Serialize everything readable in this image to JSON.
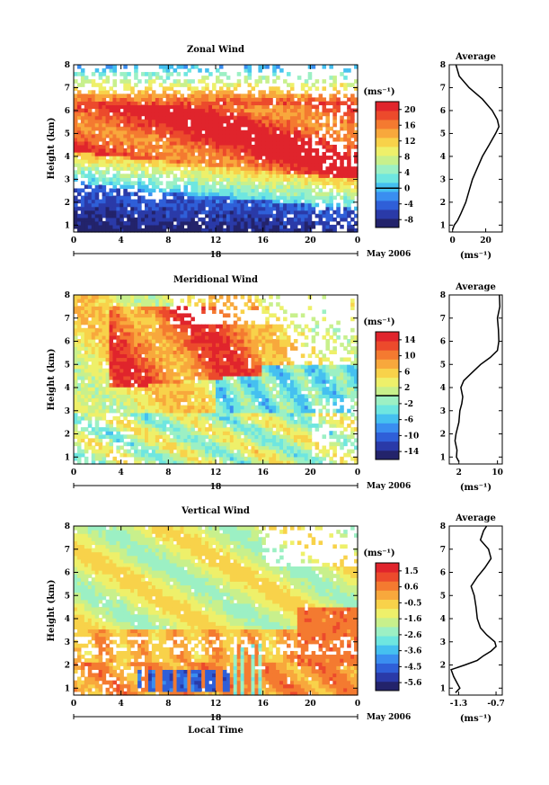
{
  "figure": {
    "x_label": "Local Time",
    "date_label": "May 2006",
    "day_label": "18",
    "unit_label": "(ms⁻¹)",
    "ylabel": "Height (km)",
    "avg_title": "Average"
  },
  "colorscale": [
    "#23236b",
    "#2a3aa8",
    "#2f5fd8",
    "#3a8ef0",
    "#45c0f0",
    "#6ee6e0",
    "#9cf0c4",
    "#c8f08c",
    "#eef06a",
    "#f8d24a",
    "#f8a83c",
    "#f47a30",
    "#ec4a2c",
    "#e0242c"
  ],
  "chart_data": [
    {
      "type": "heatmap",
      "title": "Zonal Wind",
      "x_ticks": [
        "0",
        "4",
        "8",
        "12",
        "16",
        "20",
        "0"
      ],
      "y_ticks": [
        "1",
        "2",
        "3",
        "4",
        "5",
        "6",
        "7",
        "8"
      ],
      "xlim": [
        0,
        24
      ],
      "ylim": [
        0.7,
        8
      ],
      "colorbar": {
        "ticks": [
          "20",
          "16",
          "12",
          "8",
          "4",
          "0",
          "-4",
          "-8"
        ],
        "range": [
          -10,
          22
        ],
        "zero_line": 0
      },
      "profile": {
        "title": "Average",
        "xlabel": "(ms⁻¹)",
        "x_ticks": [
          "0",
          "20"
        ],
        "xlim": [
          -2,
          30
        ],
        "height": [
          0.8,
          1.0,
          1.2,
          1.5,
          2.0,
          2.5,
          3.0,
          3.5,
          4.0,
          4.5,
          5.0,
          5.3,
          5.6,
          6.0,
          6.5,
          7.0,
          7.5,
          8.0
        ],
        "values": [
          0,
          1,
          3,
          5,
          8,
          10,
          12,
          15,
          18,
          22,
          26,
          28,
          27,
          24,
          18,
          10,
          4,
          2
        ]
      }
    },
    {
      "type": "heatmap",
      "title": "Meridional Wind",
      "x_ticks": [
        "0",
        "4",
        "8",
        "12",
        "16",
        "20",
        "0"
      ],
      "y_ticks": [
        "1",
        "2",
        "3",
        "4",
        "5",
        "6",
        "7",
        "8"
      ],
      "xlim": [
        0,
        24
      ],
      "ylim": [
        0.7,
        8
      ],
      "colorbar": {
        "ticks": [
          "14",
          "10",
          "6",
          "2",
          "-2",
          "-6",
          "-10",
          "-14"
        ],
        "range": [
          -16,
          16
        ],
        "zero_line": 0
      },
      "profile": {
        "title": "Average",
        "xlabel": "(ms⁻¹)",
        "x_ticks": [
          "2",
          "10"
        ],
        "xlim": [
          0,
          11
        ],
        "height": [
          0.8,
          1.0,
          1.3,
          1.7,
          2.0,
          2.5,
          3.0,
          3.3,
          3.6,
          4.0,
          4.3,
          4.6,
          5.0,
          5.3,
          5.6,
          6.0,
          6.5,
          7.0,
          7.5,
          8.0
        ],
        "values": [
          2,
          1.5,
          1.6,
          1.2,
          1.4,
          2.0,
          2.2,
          2.6,
          2.8,
          2.4,
          3.0,
          4.5,
          6.5,
          8.5,
          10,
          10.3,
          10.2,
          10,
          10.5,
          10.4
        ]
      }
    },
    {
      "type": "heatmap",
      "title": "Vertical Wind",
      "x_ticks": [
        "0",
        "4",
        "8",
        "12",
        "16",
        "20",
        "0"
      ],
      "y_ticks": [
        "1",
        "2",
        "3",
        "4",
        "5",
        "6",
        "7",
        "8"
      ],
      "xlim": [
        0,
        24
      ],
      "ylim": [
        0.7,
        8
      ],
      "colorbar": {
        "ticks": [
          "1.5",
          "0.6",
          "-0.5",
          "-1.6",
          "-2.6",
          "-3.6",
          "-4.5",
          "-5.6"
        ],
        "range": [
          -6,
          2
        ],
        "zero_line": null
      },
      "profile": {
        "title": "Average",
        "xlabel": "(ms⁻¹)",
        "x_ticks": [
          "-1.3",
          "-0.7"
        ],
        "xlim": [
          -1.45,
          -0.6
        ],
        "height": [
          0.8,
          1.0,
          1.2,
          1.5,
          1.8,
          2.0,
          2.2,
          2.4,
          2.6,
          2.8,
          3.0,
          3.3,
          3.6,
          4.0,
          4.5,
          5.0,
          5.4,
          5.8,
          6.2,
          6.6,
          7.0,
          7.4,
          7.8,
          8.0
        ],
        "values": [
          -1.35,
          -1.28,
          -1.32,
          -1.38,
          -1.42,
          -1.2,
          -1.0,
          -0.9,
          -0.78,
          -0.7,
          -0.72,
          -0.85,
          -0.95,
          -1.0,
          -1.02,
          -1.05,
          -1.1,
          -1.0,
          -0.88,
          -0.78,
          -0.82,
          -0.95,
          -0.9,
          -0.85
        ]
      }
    }
  ]
}
